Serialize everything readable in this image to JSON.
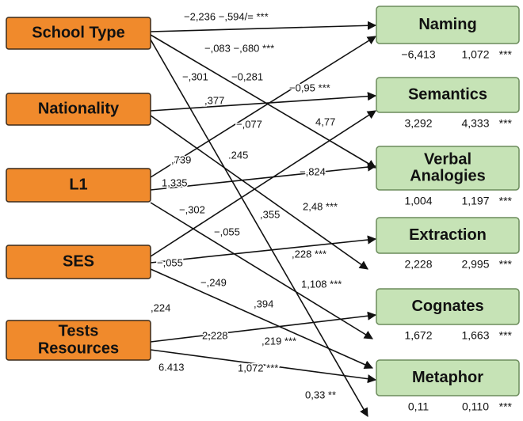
{
  "left_nodes": [
    {
      "lines": [
        "School Type"
      ]
    },
    {
      "lines": [
        "Nationality"
      ]
    },
    {
      "lines": [
        "L1"
      ]
    },
    {
      "lines": [
        "SES"
      ]
    },
    {
      "lines": [
        "Tests",
        "Resources"
      ]
    }
  ],
  "right_nodes": [
    {
      "lines": [
        "Naming"
      ],
      "stats": [
        "−6,413",
        "1,072",
        "***"
      ]
    },
    {
      "lines": [
        "Semantics"
      ],
      "stats": [
        "3,292",
        "4,333",
        "***"
      ]
    },
    {
      "lines": [
        "Verbal",
        "Analogies"
      ],
      "stats": [
        "1,004",
        "1,197",
        "***"
      ]
    },
    {
      "lines": [
        "Extraction"
      ],
      "stats": [
        "2,228",
        "2,995",
        "***"
      ]
    },
    {
      "lines": [
        "Cognates"
      ],
      "stats": [
        "1,672",
        "1,663",
        "***"
      ]
    },
    {
      "lines": [
        "Metaphor"
      ],
      "stats": [
        "0,11",
        "0,110",
        "***"
      ]
    }
  ],
  "edge_labels": [
    "−2,236 −,594/= ***",
    "−,083  −,680 ***",
    "−,301",
    "−0,281",
    "−0,95 ***",
    ",377",
    "−,077",
    "4,77",
    ",739",
    ".245",
    "1,335",
    "−,824",
    "−,302",
    ",355",
    "2,48 ***",
    "−,055",
    "−,055",
    ",228 ***",
    "−,249",
    "1,108 ***",
    ",224",
    ",394",
    "2,228",
    ",219 ***",
    "6.413",
    "1,072 ***",
    "0,33 **"
  ]
}
